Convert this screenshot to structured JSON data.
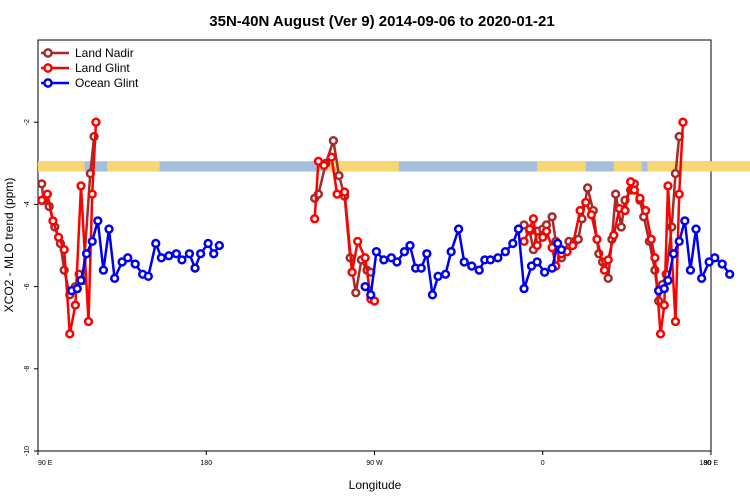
{
  "chart_data": {
    "type": "line",
    "title": "35N-40N August (Ver 9)   2014-09-06 to 2020-01-21",
    "xlabel": "Longitude",
    "ylabel": "XCO2 - MLO trend (ppm)",
    "xlim": [
      90,
      450
    ],
    "ylim": [
      -10,
      0
    ],
    "y_ticks": [
      -10,
      -8,
      -6,
      -4,
      -2
    ],
    "y_tick_labels": [
      "-10",
      "-8",
      "-6",
      "-4",
      "-2"
    ],
    "x_ticks": [
      90,
      180,
      270,
      360,
      450
    ],
    "x_tick_labels": [
      "90 E",
      "180",
      "90 W",
      "0",
      "90 E",
      "180"
    ],
    "x_tick_positions": [
      90,
      180,
      270,
      360,
      450,
      540
    ],
    "legend_position": "top-left",
    "colors": {
      "land_band": "#f7d774",
      "ocean_band": "#a3bfdd"
    },
    "band_y_range": [
      -3.2,
      -2.95
    ],
    "land_band_segments": [
      [
        90,
        115
      ],
      [
        127,
        155
      ],
      [
        245,
        283
      ],
      [
        357,
        383
      ],
      [
        398,
        413
      ],
      [
        416,
        480
      ],
      [
        486,
        488
      ],
      [
        496,
        500
      ]
    ],
    "series": [
      {
        "name": "Land Nadir",
        "color": "#a52a2a",
        "segments": [
          [
            [
              92,
              -3.5
            ],
            [
              93,
              -3.9
            ],
            [
              96,
              -4.05
            ],
            [
              99,
              -4.55
            ],
            [
              102,
              -4.95
            ],
            [
              104,
              -5.6
            ],
            [
              107,
              -6.2
            ],
            [
              110,
              -6.0
            ],
            [
              112,
              -5.7
            ],
            [
              114,
              -5.85
            ],
            [
              118,
              -3.25
            ],
            [
              120,
              -2.35
            ]
          ],
          [
            [
              238,
              -3.85
            ],
            [
              240,
              -3.75
            ],
            [
              244,
              -3.0
            ],
            [
              248,
              -2.45
            ],
            [
              251,
              -3.3
            ],
            [
              254,
              -3.8
            ],
            [
              257,
              -5.3
            ],
            [
              260,
              -6.15
            ],
            [
              263,
              -5.35
            ],
            [
              266,
              -5.6
            ],
            [
              268,
              -5.65
            ]
          ],
          [
            [
              350,
              -4.5
            ],
            [
              353,
              -4.65
            ],
            [
              355,
              -5.1
            ],
            [
              357,
              -4.65
            ],
            [
              360,
              -4.6
            ],
            [
              362,
              -4.5
            ],
            [
              365,
              -4.3
            ],
            [
              367,
              -4.9
            ],
            [
              370,
              -5.3
            ],
            [
              374,
              -4.9
            ],
            [
              377,
              -4.9
            ],
            [
              379,
              -4.85
            ],
            [
              381,
              -4.35
            ],
            [
              384,
              -3.6
            ],
            [
              387,
              -4.15
            ],
            [
              390,
              -5.2
            ],
            [
              392,
              -5.4
            ],
            [
              395,
              -5.8
            ],
            [
              397,
              -4.85
            ],
            [
              399,
              -3.75
            ],
            [
              402,
              -4.55
            ],
            [
              404,
              -3.9
            ],
            [
              407,
              -3.65
            ],
            [
              409,
              -3.5
            ],
            [
              412,
              -3.9
            ],
            [
              414,
              -4.3
            ],
            [
              417,
              -4.9
            ],
            [
              420,
              -5.6
            ],
            [
              422,
              -6.35
            ],
            [
              424,
              -5.95
            ],
            [
              426,
              -5.7
            ],
            [
              429,
              -4.55
            ],
            [
              431,
              -3.25
            ],
            [
              433,
              -2.35
            ]
          ]
        ]
      },
      {
        "name": "Land Glint",
        "color": "#ff0000",
        "segments": [
          [
            [
              92,
              -3.9
            ],
            [
              95,
              -3.75
            ],
            [
              98,
              -4.4
            ],
            [
              101,
              -4.8
            ],
            [
              104,
              -5.1
            ],
            [
              107,
              -7.15
            ],
            [
              110,
              -6.45
            ],
            [
              113,
              -3.55
            ],
            [
              117,
              -6.85
            ],
            [
              119,
              -3.75
            ],
            [
              121,
              -2.0
            ]
          ],
          [
            [
              238,
              -4.35
            ],
            [
              240,
              -2.95
            ],
            [
              243,
              -3.05
            ],
            [
              247,
              -2.85
            ],
            [
              250,
              -3.75
            ],
            [
              254,
              -3.7
            ],
            [
              258,
              -5.65
            ],
            [
              261,
              -4.9
            ],
            [
              265,
              -5.3
            ],
            [
              268,
              -6.3
            ],
            [
              270,
              -6.35
            ]
          ],
          [
            [
              350,
              -4.9
            ],
            [
              353,
              -4.6
            ],
            [
              355,
              -4.35
            ],
            [
              357,
              -5.0
            ],
            [
              360,
              -4.8
            ],
            [
              362,
              -4.65
            ],
            [
              365,
              -5.05
            ],
            [
              367,
              -5.5
            ],
            [
              370,
              -5.2
            ],
            [
              373,
              -5.15
            ],
            [
              376,
              -5.0
            ],
            [
              380,
              -4.15
            ],
            [
              383,
              -3.95
            ],
            [
              386,
              -4.25
            ],
            [
              389,
              -4.85
            ],
            [
              393,
              -5.6
            ],
            [
              395,
              -5.35
            ],
            [
              398,
              -4.75
            ],
            [
              401,
              -4.1
            ],
            [
              404,
              -4.15
            ],
            [
              407,
              -3.45
            ],
            [
              409,
              -3.65
            ],
            [
              412,
              -3.85
            ],
            [
              415,
              -4.15
            ],
            [
              418,
              -4.85
            ],
            [
              420,
              -5.3
            ],
            [
              423,
              -7.15
            ],
            [
              425,
              -6.45
            ],
            [
              427,
              -3.55
            ],
            [
              431,
              -6.85
            ],
            [
              433,
              -3.75
            ],
            [
              435,
              -2.0
            ]
          ]
        ]
      },
      {
        "name": "Ocean Glint",
        "color": "#0000ee",
        "segments": [
          [
            [
              108,
              -6.1
            ],
            [
              111,
              -6.05
            ],
            [
              113,
              -5.85
            ],
            [
              116,
              -5.2
            ],
            [
              119,
              -4.9
            ],
            [
              122,
              -4.4
            ],
            [
              125,
              -5.6
            ],
            [
              128,
              -4.6
            ],
            [
              131,
              -5.8
            ],
            [
              135,
              -5.4
            ],
            [
              138,
              -5.3
            ],
            [
              142,
              -5.45
            ],
            [
              146,
              -5.7
            ],
            [
              149,
              -5.75
            ],
            [
              153,
              -4.95
            ],
            [
              156,
              -5.3
            ],
            [
              160,
              -5.25
            ],
            [
              164,
              -5.2
            ],
            [
              167,
              -5.35
            ],
            [
              171,
              -5.2
            ],
            [
              174,
              -5.55
            ],
            [
              177,
              -5.2
            ],
            [
              181,
              -4.95
            ],
            [
              184,
              -5.2
            ],
            [
              187,
              -5.0
            ]
          ],
          [
            [
              265,
              -6.0
            ],
            [
              268,
              -6.2
            ],
            [
              271,
              -5.15
            ],
            [
              275,
              -5.35
            ],
            [
              279,
              -5.3
            ],
            [
              282,
              -5.4
            ],
            [
              286,
              -5.15
            ],
            [
              289,
              -5.0
            ],
            [
              292,
              -5.55
            ],
            [
              295,
              -5.55
            ],
            [
              298,
              -5.2
            ],
            [
              301,
              -6.2
            ],
            [
              304,
              -5.75
            ],
            [
              308,
              -5.7
            ],
            [
              311,
              -5.15
            ],
            [
              315,
              -4.6
            ],
            [
              318,
              -5.4
            ],
            [
              322,
              -5.5
            ],
            [
              326,
              -5.6
            ],
            [
              329,
              -5.35
            ],
            [
              332,
              -5.35
            ],
            [
              336,
              -5.3
            ],
            [
              340,
              -5.15
            ],
            [
              344,
              -4.95
            ],
            [
              347,
              -4.6
            ],
            [
              350,
              -6.05
            ],
            [
              354,
              -5.5
            ],
            [
              357,
              -5.4
            ],
            [
              361,
              -5.65
            ],
            [
              365,
              -5.55
            ],
            [
              368,
              -4.95
            ],
            [
              370,
              -5.1
            ]
          ],
          [
            [
              422,
              -6.1
            ],
            [
              425,
              -6.05
            ],
            [
              427,
              -5.85
            ],
            [
              430,
              -5.2
            ],
            [
              433,
              -4.9
            ],
            [
              436,
              -4.4
            ],
            [
              439,
              -5.6
            ],
            [
              442,
              -4.6
            ],
            [
              445,
              -5.8
            ],
            [
              449,
              -5.4
            ],
            [
              452,
              -5.3
            ],
            [
              456,
              -5.45
            ],
            [
              460,
              -5.7
            ]
          ]
        ]
      }
    ]
  }
}
